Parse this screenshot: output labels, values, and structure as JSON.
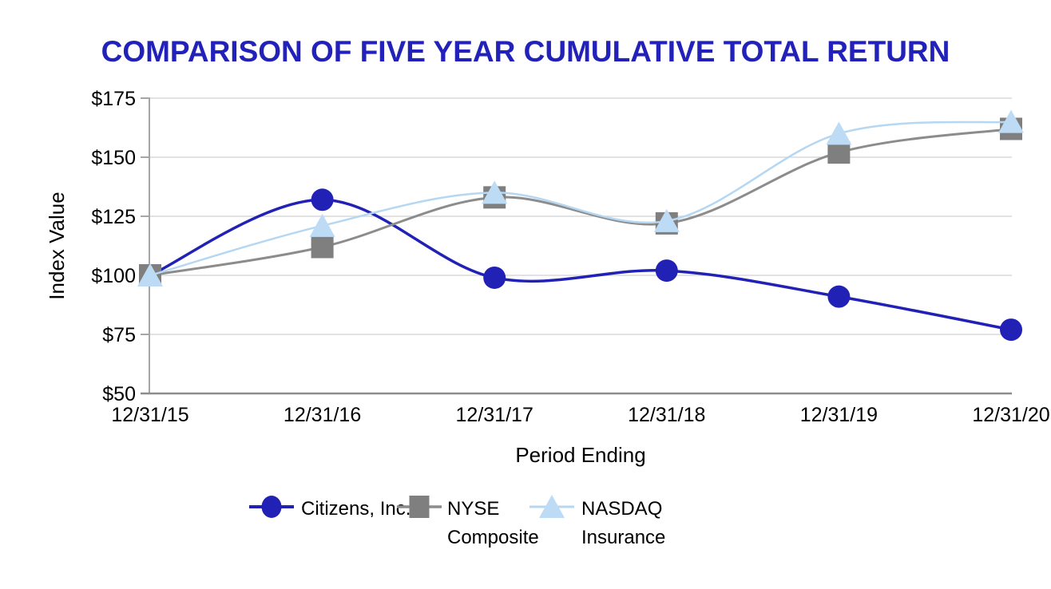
{
  "colors": {
    "title": "#2222BB",
    "text": "#000000",
    "grid": "#D9D9D9",
    "axis": "#A6A6A6",
    "axis_bottom": "#8C8C8C",
    "background": "#FFFFFF",
    "citizens_blue": "#2121B5",
    "nyse_gray": "#7F7F7F",
    "nasdaq_light_blue": "#BDDBF5"
  },
  "chart_data": {
    "type": "line",
    "title": "COMPARISON OF FIVE YEAR CUMULATIVE TOTAL RETURN",
    "xlabel": "Period Ending",
    "ylabel": "Index Value",
    "categories": [
      "12/31/15",
      "12/31/16",
      "12/31/17",
      "12/31/18",
      "12/31/19",
      "12/31/20"
    ],
    "y_ticks": {
      "values": [
        175,
        150,
        125,
        100,
        75,
        50
      ],
      "labels": [
        "$175",
        "$150",
        "$125",
        "$100",
        "$75",
        "$50"
      ]
    },
    "ylim": [
      50,
      175
    ],
    "grid": true,
    "smoothed_lines": true,
    "legend_position": "bottom",
    "series": [
      {
        "name": "Citizens, Inc.",
        "legend_label_lines": [
          "Citizens, Inc."
        ],
        "marker": "circle",
        "color": "#2121B5",
        "line_color": "#2121B5",
        "values": [
          100,
          132,
          99,
          102,
          91,
          77
        ]
      },
      {
        "name": "NYSE Composite",
        "legend_label_lines": [
          "NYSE",
          "Composite"
        ],
        "marker": "square",
        "color": "#7F7F7F",
        "line_color": "#8C8C8C",
        "values": [
          100,
          112,
          133,
          122,
          152,
          162
        ]
      },
      {
        "name": "NASDAQ Insurance",
        "legend_label_lines": [
          "NASDAQ",
          "Insurance"
        ],
        "marker": "triangle",
        "color": "#BDDBF5",
        "line_color": "#B5D7F2",
        "values": [
          100,
          121,
          135,
          123,
          160,
          165
        ]
      }
    ]
  }
}
